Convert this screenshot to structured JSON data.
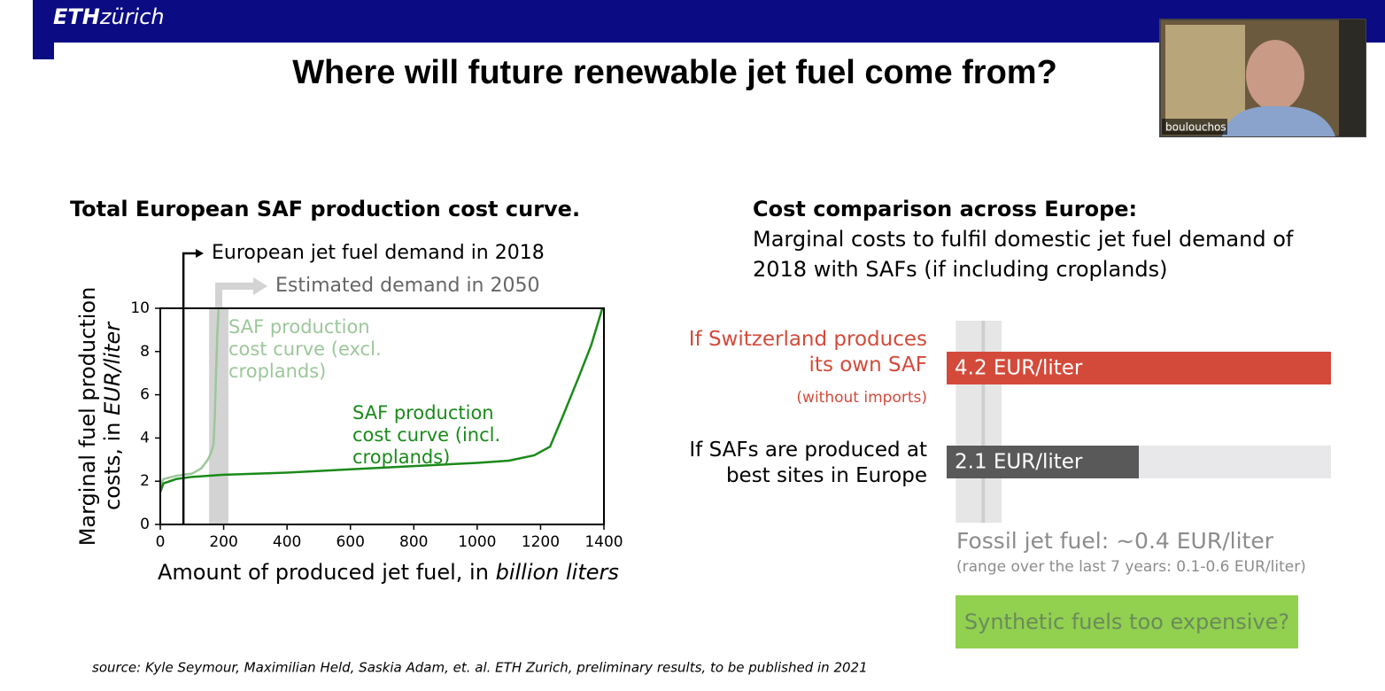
{
  "header": {
    "logo_bold": "ETH",
    "logo_rest": "zürich"
  },
  "title": "Where will future renewable jet fuel come from?",
  "webcam": {
    "name": "boulouchos"
  },
  "chart_data": [
    {
      "type": "line",
      "title": "Total European SAF production cost curve.",
      "xlabel": {
        "text": "Amount of produced jet fuel, in",
        "unit": "billion liters"
      },
      "ylabel": {
        "line1": "Marginal fuel production",
        "line2": "costs, in",
        "unit": "EUR/liter"
      },
      "xlim": [
        0,
        1400
      ],
      "ylim": [
        0,
        10
      ],
      "xticks": [
        0,
        200,
        400,
        600,
        800,
        1000,
        1200,
        1400
      ],
      "yticks": [
        0,
        2,
        4,
        6,
        8,
        10
      ],
      "series": [
        {
          "label_lines": [
            "SAF production",
            "cost curve (excl.",
            "croplands)"
          ],
          "color": "#9cc79a",
          "x": [
            0,
            10,
            50,
            100,
            130,
            150,
            160,
            168,
            172,
            176,
            180,
            184
          ],
          "values": [
            1.8,
            2.1,
            2.25,
            2.35,
            2.6,
            3.0,
            3.3,
            3.7,
            5.0,
            7.0,
            8.8,
            10
          ]
        },
        {
          "label_lines": [
            "SAF production",
            "cost curve (incl.",
            "croplands)"
          ],
          "color": "#1a8a1a",
          "x": [
            0,
            10,
            50,
            100,
            200,
            400,
            600,
            800,
            1000,
            1100,
            1180,
            1230,
            1270,
            1320,
            1360,
            1395
          ],
          "values": [
            1.5,
            1.9,
            2.1,
            2.2,
            2.3,
            2.4,
            2.55,
            2.7,
            2.85,
            2.95,
            3.2,
            3.6,
            5.0,
            6.8,
            8.3,
            10
          ]
        }
      ],
      "annotations": [
        {
          "label": "European jet fuel demand in 2018",
          "x": 73,
          "color": "#000000"
        },
        {
          "label": "Estimated demand in 2050",
          "x_range": [
            154,
            215
          ],
          "color": "#d3d3d3"
        }
      ]
    },
    {
      "type": "hbar",
      "title": "Cost comparison across Europe:",
      "subtitle_lines": [
        "Marginal costs to fulfil domestic jet fuel demand of",
        "2018 with SAFs (if including croplands)"
      ],
      "categories": [
        "If Switzerland produces its own SAF",
        "If SAFs are produced at best sites in Europe"
      ],
      "category_note": "(without imports)",
      "values": [
        4.2,
        2.1
      ],
      "value_labels": [
        "4.2 EUR/liter",
        "2.1 EUR/liter"
      ],
      "colors": [
        "#d44a3a",
        "#595959"
      ],
      "xlim": [
        0,
        4.2
      ],
      "reference": {
        "value": 0.4,
        "range": [
          0.1,
          0.6
        ],
        "label": "Fossil jet fuel: ~0.4 EUR/liter",
        "note": "(range over the last 7 years: 0.1-0.6 EUR/liter)"
      }
    }
  ],
  "question": "Synthetic fuels too expensive?",
  "source": "source: Kyle Seymour, Maximilian Held, Saskia Adam,  et. al. ETH Zurich, preliminary results, to be published in 2021"
}
